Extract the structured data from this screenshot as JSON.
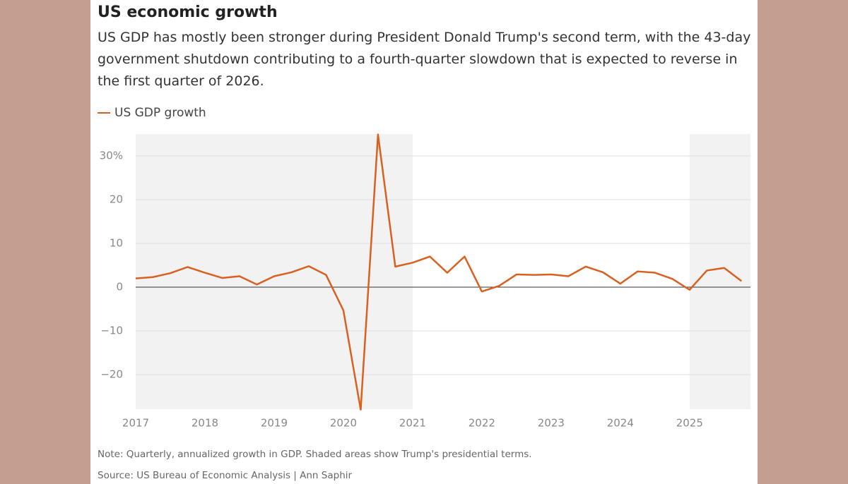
{
  "chart_data": {
    "type": "line",
    "title": "US economic growth",
    "subtitle": "US GDP has mostly been stronger during President Donald Trump's second term, with the 43-day government shutdown contributing to a fourth-quarter slowdown that is expected to reverse in the first quarter of 2026.",
    "note": "Note: Quarterly, annualized growth in GDP. Shaded areas show Trump's presidential terms.",
    "source": "Source: US Bureau of Economic Analysis | Ann Saphir",
    "x": [
      2017,
      2017.25,
      2017.5,
      2017.75,
      2018,
      2018.25,
      2018.5,
      2018.75,
      2019,
      2019.25,
      2019.5,
      2019.75,
      2020,
      2020.25,
      2020.5,
      2020.75,
      2021,
      2021.25,
      2021.5,
      2021.75,
      2022,
      2022.25,
      2022.5,
      2022.75,
      2023,
      2023.25,
      2023.5,
      2023.75,
      2024,
      2024.25,
      2024.5,
      2024.75,
      2025,
      2025.25,
      2025.5,
      2025.75
    ],
    "series": [
      {
        "name": "US GDP growth",
        "color": "#d9601f",
        "values": [
          2.0,
          2.3,
          3.2,
          4.6,
          3.3,
          2.1,
          2.5,
          0.6,
          2.5,
          3.4,
          4.8,
          2.8,
          -5.3,
          -28.0,
          34.9,
          4.7,
          5.6,
          7.0,
          3.3,
          7.0,
          -1.0,
          0.3,
          2.9,
          2.8,
          2.9,
          2.5,
          4.7,
          3.4,
          0.8,
          3.6,
          3.3,
          1.9,
          -0.6,
          3.8,
          4.4,
          1.4
        ]
      }
    ],
    "shaded": [
      [
        2017,
        2021
      ],
      [
        2025,
        2025.88
      ]
    ],
    "xlim": [
      2017,
      2025.88
    ],
    "xticks": [
      2017,
      2018,
      2019,
      2020,
      2021,
      2022,
      2023,
      2024,
      2025
    ],
    "ylim": [
      -27.9,
      35
    ],
    "yticks": [
      {
        "value": -20,
        "label": "−20"
      },
      {
        "value": -10,
        "label": "−10"
      },
      0,
      10,
      20,
      {
        "value": 30,
        "label": "30%"
      }
    ],
    "grid": true
  }
}
